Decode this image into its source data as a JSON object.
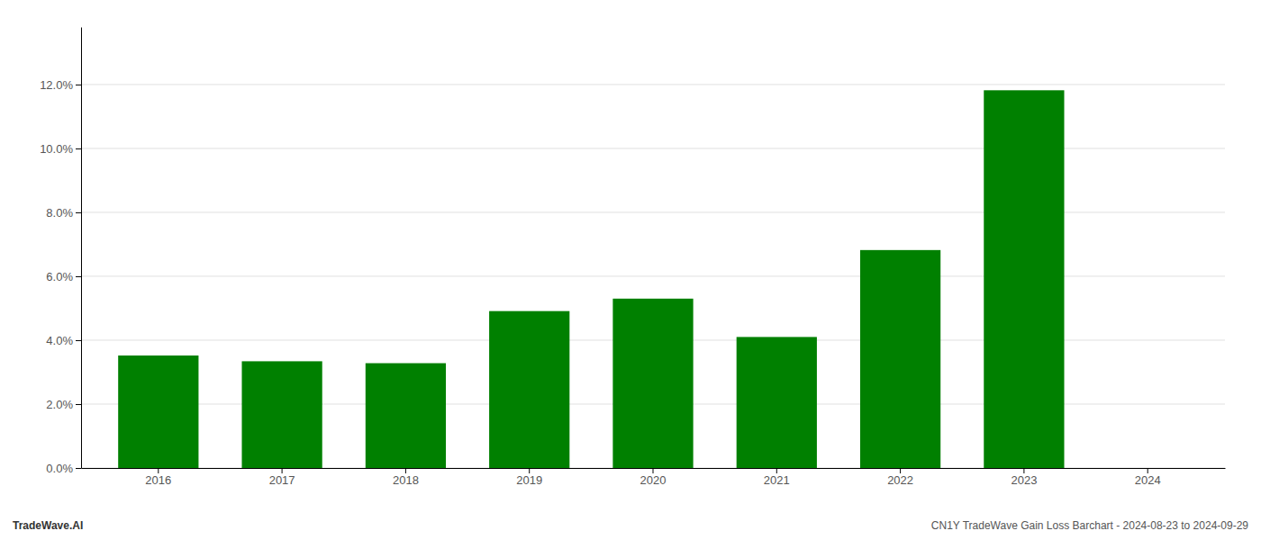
{
  "chart_data": {
    "type": "bar",
    "categories": [
      "2016",
      "2017",
      "2018",
      "2019",
      "2020",
      "2021",
      "2022",
      "2023",
      "2024"
    ],
    "values": [
      0.0352,
      0.0334,
      0.0328,
      0.0491,
      0.053,
      0.041,
      0.0682,
      0.1182,
      null
    ],
    "color": "#008000",
    "ylim": [
      0,
      0.138
    ],
    "yticks": [
      {
        "value": 0.0,
        "label": "0.0%"
      },
      {
        "value": 0.02,
        "label": "2.0%"
      },
      {
        "value": 0.04,
        "label": "4.0%"
      },
      {
        "value": 0.06,
        "label": "6.0%"
      },
      {
        "value": 0.08,
        "label": "8.0%"
      },
      {
        "value": 0.1,
        "label": "10.0%"
      },
      {
        "value": 0.12,
        "label": "12.0%"
      }
    ],
    "grid": true,
    "annotations": [
      "TradeWave.AI",
      "CN1Y TradeWave Gain Loss Barchart - 2024-08-23 to 2024-09-29"
    ]
  }
}
